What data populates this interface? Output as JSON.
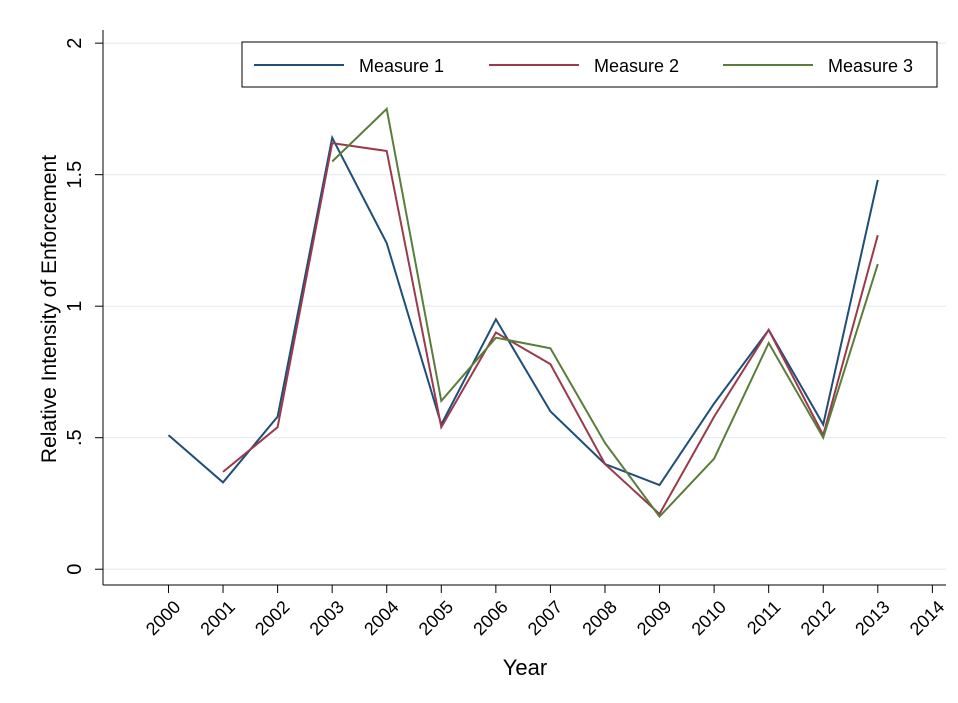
{
  "chart_data": {
    "type": "line",
    "xlabel": "Year",
    "ylabel": "Relative Intensity of Enforcement",
    "x": [
      2000,
      2001,
      2002,
      2003,
      2004,
      2005,
      2006,
      2007,
      2008,
      2009,
      2010,
      2011,
      2012,
      2013,
      2014
    ],
    "xlim": [
      1998.8,
      2014.25
    ],
    "ylim": [
      -0.06,
      2.05
    ],
    "yticks": [
      0,
      0.5,
      1,
      1.5,
      2
    ],
    "ytick_labels": [
      "0",
      ".5",
      "1",
      "1.5",
      "2"
    ],
    "grid": "horizontal",
    "legend_position": "top",
    "series": [
      {
        "name": "Measure 1",
        "color": "#1f4e79",
        "values": [
          0.51,
          0.33,
          0.58,
          1.64,
          1.24,
          0.55,
          0.95,
          0.6,
          0.4,
          0.32,
          0.63,
          0.91,
          0.55,
          1.48,
          null
        ]
      },
      {
        "name": "Measure 2",
        "color": "#9b3a4a",
        "values": [
          null,
          0.37,
          0.54,
          1.62,
          1.59,
          0.54,
          0.9,
          0.78,
          0.4,
          0.21,
          0.58,
          0.91,
          0.51,
          1.27,
          null
        ]
      },
      {
        "name": "Measure 3",
        "color": "#5a7d3a",
        "values": [
          null,
          null,
          null,
          1.55,
          1.75,
          0.64,
          0.88,
          0.84,
          0.48,
          0.2,
          0.42,
          0.86,
          0.5,
          1.16,
          null
        ]
      }
    ]
  }
}
